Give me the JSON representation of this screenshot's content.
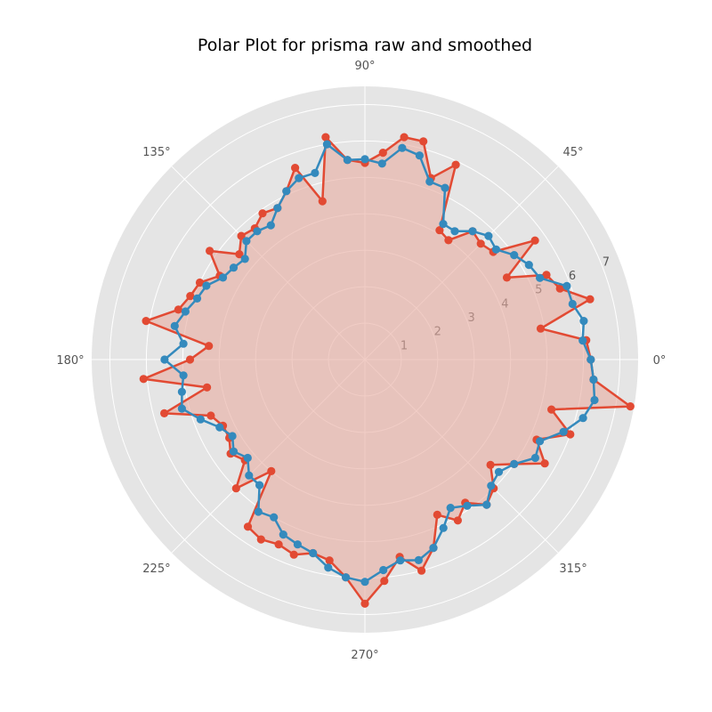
{
  "chart_data": {
    "type": "polar-line",
    "title": "Polar Plot for prisma raw and smoothed",
    "angle_ticks": [
      "0°",
      "45°",
      "90°",
      "135°",
      "180°",
      "225°",
      "270°",
      "315°"
    ],
    "radial_ticks": [
      "1",
      "2",
      "3",
      "4",
      "5",
      "6",
      "7"
    ],
    "rlim": [
      0,
      7.5
    ],
    "grid": true,
    "legend": "none",
    "colors": {
      "background": "#e5e5e5",
      "grid": "#ffffff",
      "raw": "#e24a33",
      "smoothed": "#348abd",
      "fill": "#e8aca0"
    },
    "series": [
      {
        "key": "raw",
        "angles_deg": [
          0,
          5,
          10,
          15,
          20,
          25,
          30,
          35,
          40,
          45,
          50,
          55,
          60,
          65,
          70,
          75,
          80,
          85,
          90,
          95,
          100,
          105,
          110,
          115,
          120,
          125,
          130,
          135,
          140,
          145,
          150,
          155,
          160,
          165,
          170,
          175,
          180,
          185,
          190,
          195,
          200,
          205,
          210,
          215,
          220,
          225,
          230,
          235,
          240,
          245,
          250,
          255,
          260,
          265,
          270,
          275,
          280,
          285,
          290,
          295,
          300,
          305,
          310,
          315,
          320,
          325,
          330,
          335,
          340,
          345,
          350,
          355
        ],
        "values": [
          6.2,
          6.1,
          4.9,
          6.4,
          5.7,
          5.5,
          4.5,
          5.7,
          4.6,
          4.5,
          4.6,
          4.0,
          4.1,
          5.9,
          5.3,
          6.2,
          6.2,
          5.7,
          5.4,
          5.5,
          6.2,
          4.5,
          5.6,
          5.1,
          4.8,
          4.9,
          4.7,
          4.8,
          4.5,
          5.2,
          4.6,
          5.0,
          5.1,
          5.3,
          6.1,
          4.3,
          4.8,
          6.1,
          4.4,
          5.7,
          4.5,
          4.3,
          4.3,
          4.5,
          4.3,
          5.0,
          4.0,
          5.6,
          5.7,
          5.6,
          5.7,
          5.5,
          5.6,
          6.0,
          6.7,
          6.1,
          5.5,
          6.0,
          5.5,
          4.7,
          5.1,
          4.8,
          5.2,
          5.0,
          4.5,
          5.0,
          5.7,
          5.2,
          6.0,
          5.3,
          7.4,
          6.3
        ]
      },
      {
        "key": "smoothed",
        "angles_deg": [
          0,
          5,
          10,
          15,
          20,
          25,
          30,
          35,
          40,
          45,
          50,
          55,
          60,
          65,
          70,
          75,
          80,
          85,
          90,
          95,
          100,
          105,
          110,
          115,
          120,
          125,
          130,
          135,
          140,
          145,
          150,
          155,
          160,
          165,
          170,
          175,
          180,
          185,
          190,
          195,
          200,
          205,
          210,
          215,
          220,
          225,
          230,
          235,
          240,
          245,
          250,
          255,
          260,
          265,
          270,
          275,
          280,
          285,
          290,
          295,
          300,
          305,
          310,
          315,
          320,
          325,
          330,
          335,
          340,
          345,
          350,
          355
        ],
        "values": [
          6.2,
          6.0,
          6.1,
          5.9,
          5.9,
          5.3,
          5.2,
          5.0,
          4.7,
          4.8,
          4.6,
          4.3,
          4.3,
          5.2,
          5.2,
          5.8,
          5.9,
          5.4,
          5.5,
          5.5,
          6.0,
          5.3,
          5.3,
          5.1,
          4.8,
          4.5,
          4.6,
          4.6,
          4.3,
          4.4,
          4.5,
          4.8,
          4.9,
          5.1,
          5.3,
          5.0,
          5.5,
          5.0,
          5.1,
          5.2,
          4.8,
          4.4,
          4.2,
          4.4,
          4.2,
          4.5,
          4.5,
          5.1,
          5.0,
          5.3,
          5.4,
          5.5,
          5.8,
          6.0,
          6.1,
          5.8,
          5.6,
          5.7,
          5.5,
          5.1,
          4.7,
          4.9,
          5.2,
          4.9,
          4.8,
          5.0,
          5.4,
          5.3,
          5.8,
          6.2,
          6.4,
          6.3
        ]
      }
    ]
  }
}
